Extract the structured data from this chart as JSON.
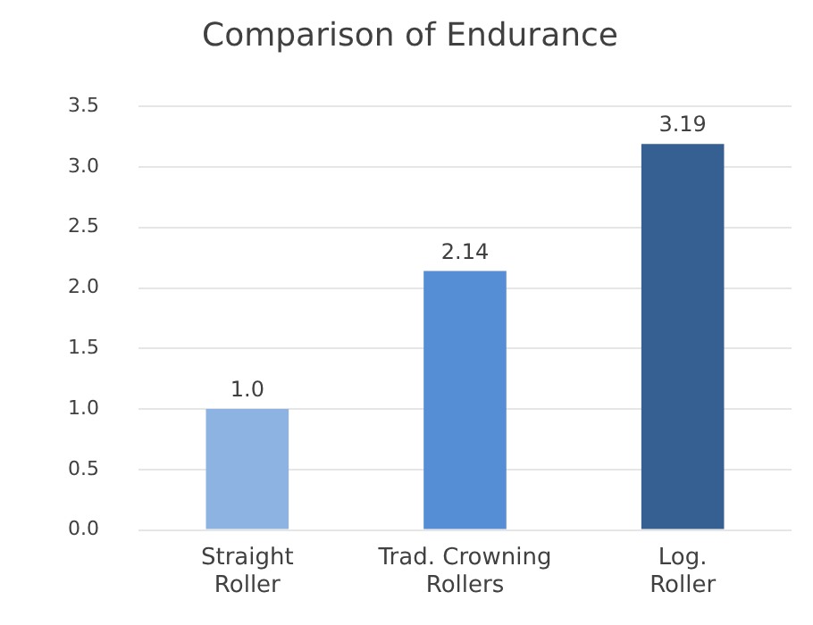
{
  "chart_data": {
    "type": "bar",
    "title": "Comparison of Endurance",
    "categories": [
      "Straight Roller",
      "Trad. Crowning Rollers",
      "Log. Roller"
    ],
    "values": [
      1.0,
      2.14,
      3.19
    ],
    "value_labels": [
      "1.0",
      "2.14",
      "3.19"
    ],
    "colors": [
      "#8db3e2",
      "#558ed5",
      "#376092"
    ],
    "ylim": [
      0,
      3.5
    ],
    "yticks": [
      {
        "value": 0,
        "label": "0.0"
      },
      {
        "value": 0.5,
        "label": "0.5"
      },
      {
        "value": 1,
        "label": "1.0"
      },
      {
        "value": 1.5,
        "label": "1.5"
      },
      {
        "value": 2,
        "label": "2.0"
      },
      {
        "value": 2.5,
        "label": "2.5"
      },
      {
        "value": 3,
        "label": "3.0"
      },
      {
        "value": 3.5,
        "label": "3.5"
      }
    ],
    "grid": "y",
    "legend": false
  }
}
